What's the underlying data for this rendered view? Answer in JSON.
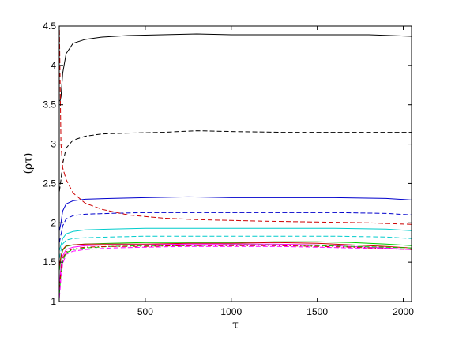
{
  "chart_data": {
    "type": "line",
    "title": "",
    "xlabel": "τ",
    "ylabel": "(ρτ)",
    "xlim": [
      0,
      2048
    ],
    "ylim": [
      1,
      4.5
    ],
    "xticks": [
      500,
      1000,
      1500,
      2000
    ],
    "yticks": [
      1,
      1.5,
      2,
      2.5,
      3,
      3.5,
      4,
      4.5
    ],
    "xtick_labels": [
      "500",
      "1000",
      "1500",
      "2000"
    ],
    "ytick_labels": [
      "1",
      "1.5",
      "2",
      "2.5",
      "3",
      "3.5",
      "4",
      "4.5"
    ],
    "grid": false,
    "legend": "none",
    "series": [
      {
        "color": "#000000",
        "dash": "solid",
        "x": [
          1,
          5,
          10,
          20,
          40,
          80,
          150,
          250,
          400,
          600,
          800,
          1000,
          1200,
          1500,
          1800,
          2048
        ],
        "y": [
          3.55,
          3.55,
          3.6,
          3.9,
          4.15,
          4.28,
          4.33,
          4.36,
          4.38,
          4.39,
          4.4,
          4.39,
          4.39,
          4.39,
          4.39,
          4.37
        ]
      },
      {
        "color": "#000000",
        "dash": "dashed",
        "x": [
          1,
          10,
          20,
          40,
          80,
          150,
          250,
          400,
          600,
          800,
          1000,
          1300,
          1600,
          2048
        ],
        "y": [
          2.4,
          2.55,
          2.75,
          2.95,
          3.05,
          3.1,
          3.13,
          3.14,
          3.15,
          3.17,
          3.16,
          3.15,
          3.15,
          3.15
        ]
      },
      {
        "color": "#0000cc",
        "dash": "solid",
        "x": [
          1,
          10,
          20,
          40,
          80,
          150,
          300,
          500,
          750,
          1000,
          1300,
          1600,
          1900,
          2048
        ],
        "y": [
          1.9,
          2.0,
          2.15,
          2.24,
          2.28,
          2.3,
          2.31,
          2.32,
          2.33,
          2.32,
          2.32,
          2.32,
          2.31,
          2.29
        ]
      },
      {
        "color": "#0000cc",
        "dash": "dashed",
        "x": [
          1,
          10,
          20,
          40,
          80,
          150,
          300,
          500,
          750,
          1000,
          1300,
          1600,
          1900,
          2048
        ],
        "y": [
          1.75,
          1.85,
          1.96,
          2.05,
          2.09,
          2.11,
          2.12,
          2.13,
          2.13,
          2.13,
          2.13,
          2.13,
          2.12,
          2.1
        ]
      },
      {
        "color": "#cc0000",
        "dash": "dashed",
        "x": [
          1,
          10,
          20,
          40,
          80,
          150,
          250,
          400,
          600,
          800,
          1000,
          1200,
          1500,
          1800,
          2048
        ],
        "y": [
          4.45,
          3.0,
          2.7,
          2.55,
          2.38,
          2.25,
          2.17,
          2.1,
          2.06,
          2.04,
          2.03,
          2.02,
          2.01,
          2.0,
          1.98
        ]
      },
      {
        "color": "#00cccc",
        "dash": "solid",
        "x": [
          1,
          10,
          20,
          40,
          80,
          150,
          300,
          500,
          750,
          1000,
          1300,
          1600,
          1900,
          2048
        ],
        "y": [
          1.65,
          1.72,
          1.8,
          1.86,
          1.89,
          1.91,
          1.92,
          1.93,
          1.93,
          1.93,
          1.93,
          1.93,
          1.92,
          1.9
        ]
      },
      {
        "color": "#00cccc",
        "dash": "dashed",
        "x": [
          1,
          10,
          20,
          40,
          80,
          150,
          300,
          500,
          750,
          1000,
          1300,
          1600,
          1900,
          2048
        ],
        "y": [
          1.55,
          1.65,
          1.73,
          1.78,
          1.8,
          1.81,
          1.82,
          1.83,
          1.83,
          1.83,
          1.83,
          1.83,
          1.82,
          1.8
        ]
      },
      {
        "color": "#00cc00",
        "dash": "solid",
        "x": [
          1,
          10,
          20,
          40,
          80,
          150,
          300,
          500,
          750,
          1000,
          1250,
          1500,
          1700,
          1900,
          2048
        ],
        "y": [
          1.4,
          1.55,
          1.65,
          1.7,
          1.72,
          1.73,
          1.74,
          1.75,
          1.75,
          1.75,
          1.76,
          1.76,
          1.75,
          1.73,
          1.71
        ]
      },
      {
        "color": "#cc0000",
        "dash": "solid",
        "x": [
          1,
          10,
          20,
          40,
          80,
          150,
          300,
          500,
          750,
          1000,
          1250,
          1500,
          1700,
          1900,
          2048
        ],
        "y": [
          1.45,
          1.58,
          1.66,
          1.71,
          1.72,
          1.73,
          1.73,
          1.73,
          1.74,
          1.74,
          1.75,
          1.74,
          1.72,
          1.7,
          1.68
        ]
      },
      {
        "color": "#ff00ff",
        "dash": "solid",
        "x": [
          1,
          10,
          20,
          40,
          80,
          150,
          300,
          500,
          750,
          1000,
          1250,
          1500,
          1700,
          1900,
          2048
        ],
        "y": [
          1.2,
          1.45,
          1.58,
          1.66,
          1.69,
          1.71,
          1.72,
          1.72,
          1.73,
          1.73,
          1.73,
          1.72,
          1.7,
          1.68,
          1.66
        ]
      },
      {
        "color": "#00cc00",
        "dash": "dashed",
        "x": [
          1,
          10,
          20,
          40,
          80,
          150,
          300,
          500,
          750,
          1000,
          1250,
          1500,
          1700,
          1900,
          2048
        ],
        "y": [
          1.1,
          1.35,
          1.52,
          1.62,
          1.66,
          1.68,
          1.7,
          1.71,
          1.71,
          1.72,
          1.72,
          1.71,
          1.7,
          1.69,
          1.68
        ]
      },
      {
        "color": "#cc0000",
        "dash": "dashdot",
        "x": [
          1,
          10,
          20,
          40,
          80,
          150,
          300,
          500,
          750,
          1000,
          1250,
          1500,
          1700,
          1900,
          2048
        ],
        "y": [
          1.15,
          1.4,
          1.55,
          1.63,
          1.67,
          1.69,
          1.7,
          1.7,
          1.71,
          1.71,
          1.71,
          1.7,
          1.69,
          1.67,
          1.66
        ]
      },
      {
        "color": "#ff00ff",
        "dash": "dashed",
        "x": [
          1,
          10,
          20,
          40,
          80,
          150,
          300,
          500,
          750,
          1000,
          1250,
          1500,
          1700,
          1900,
          2048
        ],
        "y": [
          1.05,
          1.3,
          1.48,
          1.6,
          1.64,
          1.66,
          1.68,
          1.69,
          1.7,
          1.7,
          1.7,
          1.69,
          1.68,
          1.67,
          1.66
        ]
      }
    ]
  }
}
